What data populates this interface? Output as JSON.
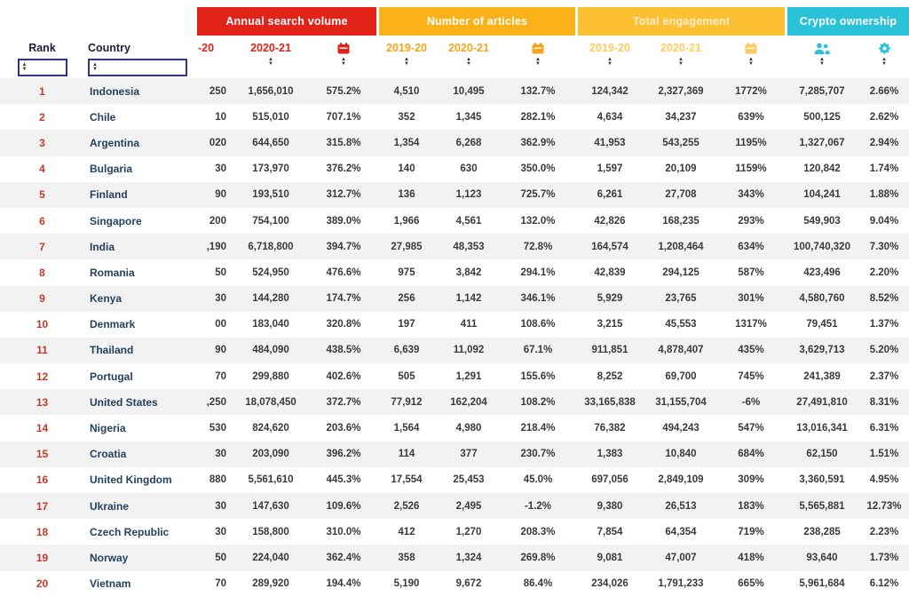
{
  "groups": [
    {
      "label": "Annual search volume",
      "color": "#e2231a"
    },
    {
      "label": "Number of articles",
      "color": "#fbb118"
    },
    {
      "label": "Total engagement",
      "color": "#fcc033"
    },
    {
      "label": "Crypto ownership",
      "color": "#2ac2d9"
    }
  ],
  "columns": {
    "rank": "Rank",
    "country": "Country",
    "search_prev": "-20",
    "search_curr": "2020-21",
    "articles_prev": "2019-20",
    "articles_curr": "2020-21",
    "engagement_prev": "2019-20",
    "engagement_curr": "2020-21"
  },
  "icons": {
    "search_change": "calendar-icon",
    "articles_change": "calendar-icon",
    "engagement_change": "calendar-icon",
    "ownership_count": "people-icon",
    "ownership_share": "gear-icon",
    "sort": "up-down-sort-arrows",
    "filter": "sort-filter-box"
  },
  "colors": {
    "stripe": "#f2f2f2",
    "rank_text": "#c13a28",
    "country_text": "#24425f",
    "filter_border": "#2f3193"
  },
  "rows": [
    [
      "1",
      "Indonesia",
      "250",
      "1,656,010",
      "575.2%",
      "4,510",
      "10,495",
      "132.7%",
      "124,342",
      "2,327,369",
      "1772%",
      "7,285,707",
      "2.66%"
    ],
    [
      "2",
      "Chile",
      "10",
      "515,010",
      "707.1%",
      "352",
      "1,345",
      "282.1%",
      "4,634",
      "34,237",
      "639%",
      "500,125",
      "2.62%"
    ],
    [
      "3",
      "Argentina",
      "020",
      "644,650",
      "315.8%",
      "1,354",
      "6,268",
      "362.9%",
      "41,953",
      "543,255",
      "1195%",
      "1,327,067",
      "2.94%"
    ],
    [
      "4",
      "Bulgaria",
      "30",
      "173,970",
      "376.2%",
      "140",
      "630",
      "350.0%",
      "1,597",
      "20,109",
      "1159%",
      "120,842",
      "1.74%"
    ],
    [
      "5",
      "Finland",
      "90",
      "193,510",
      "312.7%",
      "136",
      "1,123",
      "725.7%",
      "6,261",
      "27,708",
      "343%",
      "104,241",
      "1.88%"
    ],
    [
      "6",
      "Singapore",
      "200",
      "754,100",
      "389.0%",
      "1,966",
      "4,561",
      "132.0%",
      "42,826",
      "168,235",
      "293%",
      "549,903",
      "9.04%"
    ],
    [
      "7",
      "India",
      ",190",
      "6,718,800",
      "394.7%",
      "27,985",
      "48,353",
      "72.8%",
      "164,574",
      "1,208,464",
      "634%",
      "100,740,320",
      "7.30%"
    ],
    [
      "8",
      "Romania",
      "50",
      "524,950",
      "476.6%",
      "975",
      "3,842",
      "294.1%",
      "42,839",
      "294,125",
      "587%",
      "423,496",
      "2.20%"
    ],
    [
      "9",
      "Kenya",
      "30",
      "144,280",
      "174.7%",
      "256",
      "1,142",
      "346.1%",
      "5,929",
      "23,765",
      "301%",
      "4,580,760",
      "8.52%"
    ],
    [
      "10",
      "Denmark",
      "00",
      "183,040",
      "320.8%",
      "197",
      "411",
      "108.6%",
      "3,215",
      "45,553",
      "1317%",
      "79,451",
      "1.37%"
    ],
    [
      "11",
      "Thailand",
      "90",
      "484,090",
      "438.5%",
      "6,639",
      "11,092",
      "67.1%",
      "911,851",
      "4,878,407",
      "435%",
      "3,629,713",
      "5.20%"
    ],
    [
      "12",
      "Portugal",
      "70",
      "299,880",
      "402.6%",
      "505",
      "1,291",
      "155.6%",
      "8,252",
      "69,700",
      "745%",
      "241,389",
      "2.37%"
    ],
    [
      "13",
      "United States",
      ",250",
      "18,078,450",
      "372.7%",
      "77,912",
      "162,204",
      "108.2%",
      "33,165,838",
      "31,155,704",
      "-6%",
      "27,491,810",
      "8.31%"
    ],
    [
      "14",
      "Nigeria",
      "530",
      "824,620",
      "203.6%",
      "1,564",
      "4,980",
      "218.4%",
      "76,382",
      "494,243",
      "547%",
      "13,016,341",
      "6.31%"
    ],
    [
      "15",
      "Croatia",
      "30",
      "203,090",
      "396.2%",
      "114",
      "377",
      "230.7%",
      "1,383",
      "10,840",
      "684%",
      "62,150",
      "1.51%"
    ],
    [
      "16",
      "United Kingdom",
      "880",
      "5,561,610",
      "445.3%",
      "17,554",
      "25,453",
      "45.0%",
      "697,056",
      "2,849,109",
      "309%",
      "3,360,591",
      "4.95%"
    ],
    [
      "17",
      "Ukraine",
      "30",
      "147,630",
      "109.6%",
      "2,526",
      "2,495",
      "-1.2%",
      "9,380",
      "26,513",
      "183%",
      "5,565,881",
      "12.73%"
    ],
    [
      "18",
      "Czech Republic",
      "30",
      "158,800",
      "310.0%",
      "412",
      "1,270",
      "208.3%",
      "7,854",
      "64,354",
      "719%",
      "238,285",
      "2.23%"
    ],
    [
      "19",
      "Norway",
      "50",
      "224,040",
      "362.4%",
      "358",
      "1,324",
      "269.8%",
      "9,081",
      "47,007",
      "418%",
      "93,640",
      "1.73%"
    ],
    [
      "20",
      "Vietnam",
      "70",
      "289,920",
      "194.4%",
      "5,190",
      "9,672",
      "86.4%",
      "234,026",
      "1,791,233",
      "665%",
      "5,961,684",
      "6.12%"
    ]
  ]
}
